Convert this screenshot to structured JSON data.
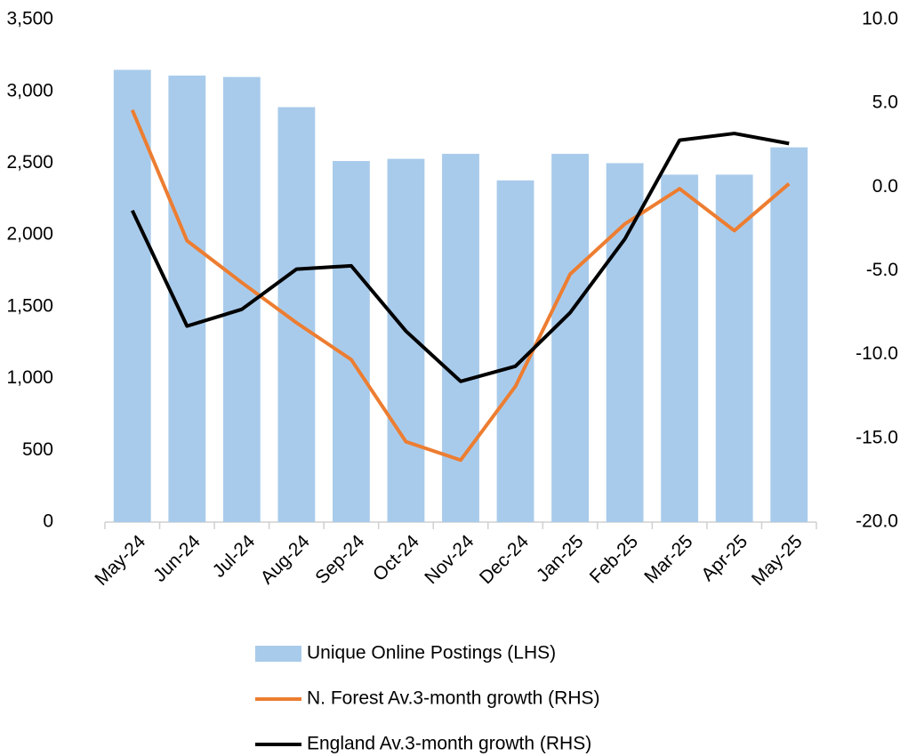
{
  "chart_data": {
    "type": "bar-line",
    "categories": [
      "May-24",
      "Jun-24",
      "Jul-24",
      "Aug-24",
      "Sep-24",
      "Oct-24",
      "Nov-24",
      "Dec-24",
      "Jan-25",
      "Feb-25",
      "Mar-25",
      "Apr-25",
      "May-25"
    ],
    "series": [
      {
        "name": "Unique Online Postings (LHS)",
        "type": "bar",
        "color": "#a9cbeb",
        "values": [
          3150,
          3110,
          3100,
          2890,
          2515,
          2530,
          2565,
          2380,
          2565,
          2500,
          2420,
          2420,
          2610
        ]
      },
      {
        "name": "N. Forest Av.3-month growth (RHS)",
        "type": "line",
        "axis": "y2",
        "color": "#ed7d31",
        "values": [
          4.6,
          -3.2,
          -5.7,
          -8.1,
          -10.3,
          -15.2,
          -16.3,
          -11.9,
          -5.2,
          -2.2,
          -0.1,
          -2.6,
          0.2
        ]
      },
      {
        "name": "England Av.3-month growth (RHS)",
        "type": "line",
        "axis": "y2",
        "color": "#000000",
        "values": [
          -1.4,
          -8.3,
          -7.3,
          -4.9,
          -4.7,
          -8.6,
          -11.6,
          -10.7,
          -7.5,
          -3.1,
          2.8,
          3.2,
          2.6
        ]
      }
    ],
    "ylim": [
      0,
      3500
    ],
    "yticks": [
      0,
      {
        "value": 500,
        "label": "500"
      },
      {
        "value": 1000,
        "label": "1,000"
      },
      {
        "value": 1500,
        "label": "1,500"
      },
      {
        "value": 2000,
        "label": "2,000"
      },
      {
        "value": 2500,
        "label": "2,500"
      },
      {
        "value": 3000,
        "label": "3,000"
      },
      {
        "value": 3500,
        "label": "3,500"
      }
    ],
    "y2lim": [
      -20,
      10
    ],
    "y2ticks": [
      {
        "value": -20,
        "label": "-20.0"
      },
      {
        "value": -15,
        "label": "-15.0"
      },
      {
        "value": -10,
        "label": "-10.0"
      },
      {
        "value": -5,
        "label": "-5.0"
      },
      {
        "value": 0,
        "label": "0.0"
      },
      {
        "value": 5,
        "label": "5.0"
      },
      {
        "value": 10,
        "label": "10.0"
      }
    ],
    "grid": false,
    "legend": "bottom"
  }
}
